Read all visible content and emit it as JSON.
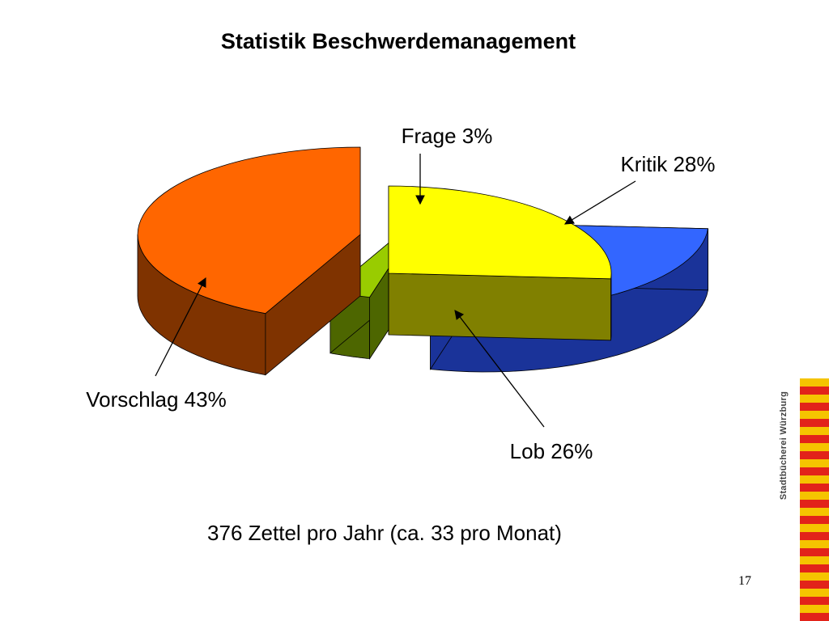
{
  "slide": {
    "title": "Statistik Beschwerdemanagement",
    "summary": "376 Zettel pro Jahr  (ca. 33 pro Monat)",
    "page_number": "17",
    "logo_text": "Stadtbücherei Würzburg"
  },
  "chart_data": {
    "type": "pie",
    "three_d": true,
    "exploded": true,
    "categories": [
      "Vorschlag",
      "Frage",
      "Kritik",
      "Lob"
    ],
    "values": [
      43,
      3,
      28,
      26
    ],
    "unit": "%",
    "labels": [
      "Vorschlag 43%",
      "Frage 3%",
      "Kritik 28%",
      "Lob 26%"
    ],
    "colors": {
      "Vorschlag": {
        "top": "#ff6600",
        "side": "#7f3300"
      },
      "Frage": {
        "top": "#99cc00",
        "side": "#4d6600"
      },
      "Kritik": {
        "top": "#3366ff",
        "side": "#1a3399"
      },
      "Lob": {
        "top": "#ffff00",
        "side": "#808000"
      }
    },
    "title": "",
    "legend": "none"
  }
}
